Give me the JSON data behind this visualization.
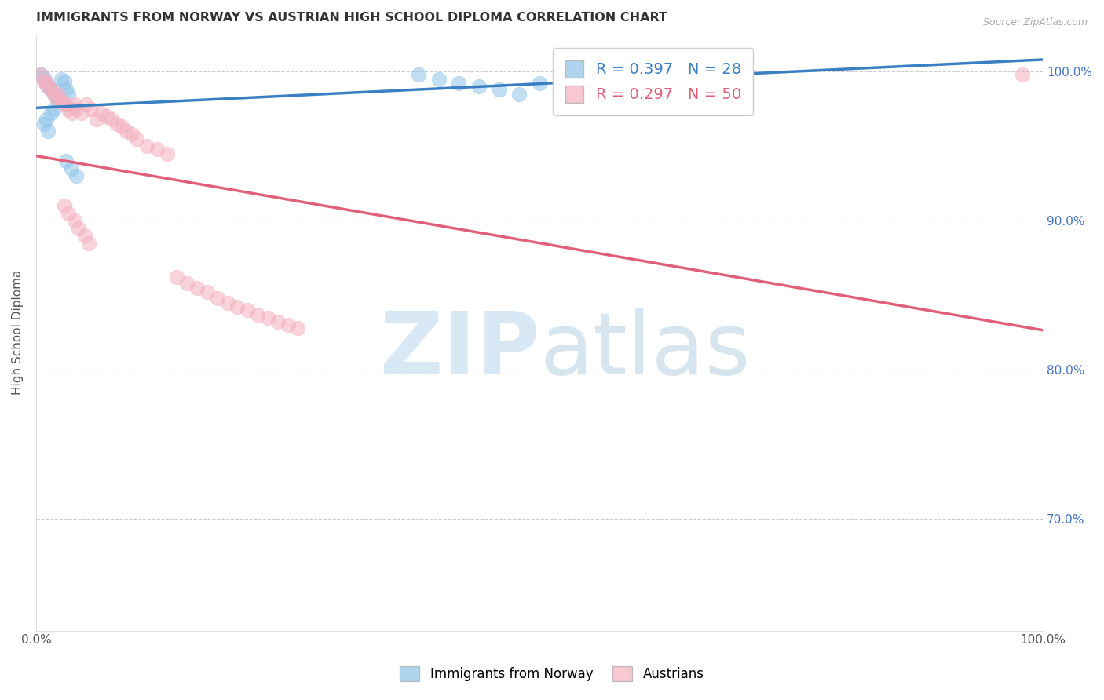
{
  "title": "IMMIGRANTS FROM NORWAY VS AUSTRIAN HIGH SCHOOL DIPLOMA CORRELATION CHART",
  "source": "Source: ZipAtlas.com",
  "ylabel": "High School Diploma",
  "xlim": [
    0.0,
    1.0
  ],
  "ylim": [
    0.625,
    1.025
  ],
  "yticks": [
    0.7,
    0.8,
    0.9,
    1.0
  ],
  "ytick_labels": [
    "70.0%",
    "80.0%",
    "90.0%",
    "100.0%"
  ],
  "xticks": [
    0.0,
    0.2,
    0.4,
    0.6,
    0.8,
    1.0
  ],
  "xtick_labels": [
    "0.0%",
    "",
    "",
    "",
    "",
    "100.0%"
  ],
  "blue_color": "#8ec4e8",
  "pink_color": "#f4b0c0",
  "blue_line_color": "#3a7fc1",
  "pink_line_color": "#e0607a",
  "legend_r_blue": "R = 0.397",
  "legend_n_blue": "N = 28",
  "legend_r_pink": "R = 0.297",
  "legend_n_pink": "N = 50",
  "blue_R": 0.397,
  "pink_R": 0.297,
  "norway_x": [
    0.005,
    0.008,
    0.01,
    0.012,
    0.015,
    0.018,
    0.02,
    0.022,
    0.025,
    0.028,
    0.03,
    0.032,
    0.018,
    0.015,
    0.01,
    0.008,
    0.012,
    0.38,
    0.4,
    0.42,
    0.44,
    0.46,
    0.48,
    0.5,
    0.52,
    0.03,
    0.035,
    0.04
  ],
  "norway_y": [
    0.998,
    0.996,
    0.992,
    0.99,
    0.988,
    0.985,
    0.983,
    0.98,
    0.995,
    0.993,
    0.988,
    0.985,
    0.975,
    0.972,
    0.968,
    0.965,
    0.96,
    0.998,
    0.995,
    0.992,
    0.99,
    0.988,
    0.985,
    0.992,
    0.99,
    0.94,
    0.935,
    0.93
  ],
  "austria_x": [
    0.005,
    0.008,
    0.01,
    0.012,
    0.015,
    0.018,
    0.02,
    0.022,
    0.025,
    0.028,
    0.03,
    0.032,
    0.035,
    0.038,
    0.04,
    0.045,
    0.05,
    0.055,
    0.06,
    0.065,
    0.07,
    0.075,
    0.08,
    0.085,
    0.09,
    0.095,
    0.1,
    0.11,
    0.12,
    0.13,
    0.14,
    0.15,
    0.16,
    0.17,
    0.18,
    0.19,
    0.2,
    0.21,
    0.22,
    0.23,
    0.24,
    0.25,
    0.26,
    0.028,
    0.032,
    0.038,
    0.042,
    0.048,
    0.052,
    0.98
  ],
  "austria_y": [
    0.998,
    0.993,
    0.992,
    0.99,
    0.988,
    0.985,
    0.982,
    0.985,
    0.98,
    0.978,
    0.978,
    0.975,
    0.972,
    0.978,
    0.975,
    0.972,
    0.978,
    0.975,
    0.968,
    0.972,
    0.97,
    0.968,
    0.965,
    0.963,
    0.96,
    0.958,
    0.955,
    0.95,
    0.948,
    0.945,
    0.862,
    0.858,
    0.855,
    0.852,
    0.848,
    0.845,
    0.842,
    0.84,
    0.837,
    0.835,
    0.832,
    0.83,
    0.828,
    0.91,
    0.905,
    0.9,
    0.895,
    0.89,
    0.885,
    0.998
  ]
}
